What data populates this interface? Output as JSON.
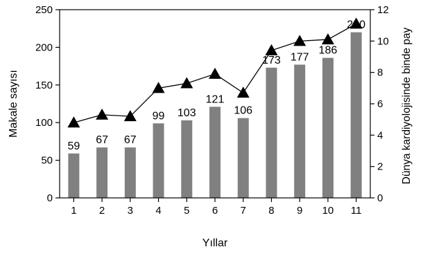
{
  "chart_data": {
    "type": "bar",
    "xlabel": "Yıllar",
    "ylabel": "Makale sayısı",
    "y2label": "Dünya kardiyolojisinde binde pay",
    "categories": [
      "1",
      "2",
      "3",
      "4",
      "5",
      "6",
      "7",
      "8",
      "9",
      "10",
      "11"
    ],
    "ylim": [
      0,
      250
    ],
    "yticks": [
      "0",
      "50",
      "100",
      "150",
      "200",
      "250"
    ],
    "y2lim": [
      0,
      12
    ],
    "y2ticks": [
      "0",
      "2",
      "4",
      "6",
      "8",
      "10",
      "12"
    ],
    "grid": false,
    "series": [
      {
        "type": "bar",
        "axis": "left",
        "values": [
          59,
          67,
          67,
          99,
          103,
          121,
          106,
          173,
          177,
          186,
          220
        ],
        "labels": [
          "59",
          "67",
          "67",
          "99",
          "103",
          "121",
          "106",
          "173",
          "177",
          "186",
          "220"
        ],
        "color": "#808080"
      },
      {
        "type": "line",
        "axis": "right",
        "marker": "triangle",
        "values": [
          4.8,
          5.3,
          5.2,
          7.0,
          7.3,
          7.9,
          6.7,
          9.4,
          10.0,
          10.1,
          11.1
        ],
        "color": "#000000"
      }
    ]
  }
}
